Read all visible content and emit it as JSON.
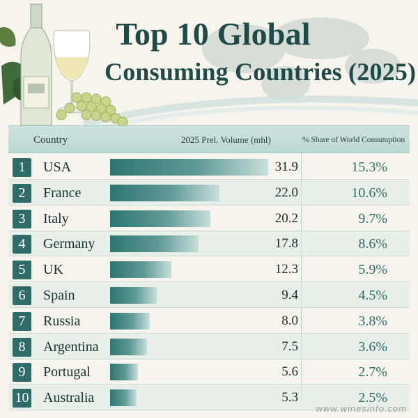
{
  "title_line1": "Top 10 Global",
  "title_line2": "Consuming Countries (2025)",
  "columns": {
    "country": "Country",
    "volume": "2025 Prel. Volume (mhl)",
    "share": "% Share of World Consumption"
  },
  "watermark": "www.winesinfo.com",
  "colors": {
    "bar": "#2f7571",
    "rank_badge": "#2f6b68",
    "share_text": "#2e6f6b",
    "header_bg": "#c6ddd9"
  },
  "chart_data": {
    "type": "table",
    "columns": [
      "Country",
      "2025 Prel. Volume (mhl)",
      "% Share of World Consumption"
    ],
    "rows": [
      {
        "rank": "1",
        "country": "USA",
        "volume": "31.9",
        "share": "15.3%",
        "value": 31.9
      },
      {
        "rank": "2",
        "country": "France",
        "volume": "22.0",
        "share": "10.6%",
        "value": 22.0
      },
      {
        "rank": "3",
        "country": "Italy",
        "volume": "20.2",
        "share": "9.7%",
        "value": 20.2
      },
      {
        "rank": "4",
        "country": "Germany",
        "volume": "17.8",
        "share": "8.6%",
        "value": 17.8
      },
      {
        "rank": "5",
        "country": "UK",
        "volume": "12.3",
        "share": "5.9%",
        "value": 12.3
      },
      {
        "rank": "6",
        "country": "Spain",
        "volume": "9.4",
        "share": "4.5%",
        "value": 9.4
      },
      {
        "rank": "7",
        "country": "Russia",
        "volume": "8.0",
        "share": "3.8%",
        "value": 8.0
      },
      {
        "rank": "8",
        "country": "Argentina",
        "volume": "7.5",
        "share": "3.6%",
        "value": 7.5
      },
      {
        "rank": "9",
        "country": "Portugal",
        "volume": "5.6",
        "share": "2.7%",
        "value": 5.6
      },
      {
        "rank": "10",
        "country": "Australia",
        "volume": "5.3",
        "share": "2.5%",
        "value": 5.3
      }
    ]
  }
}
